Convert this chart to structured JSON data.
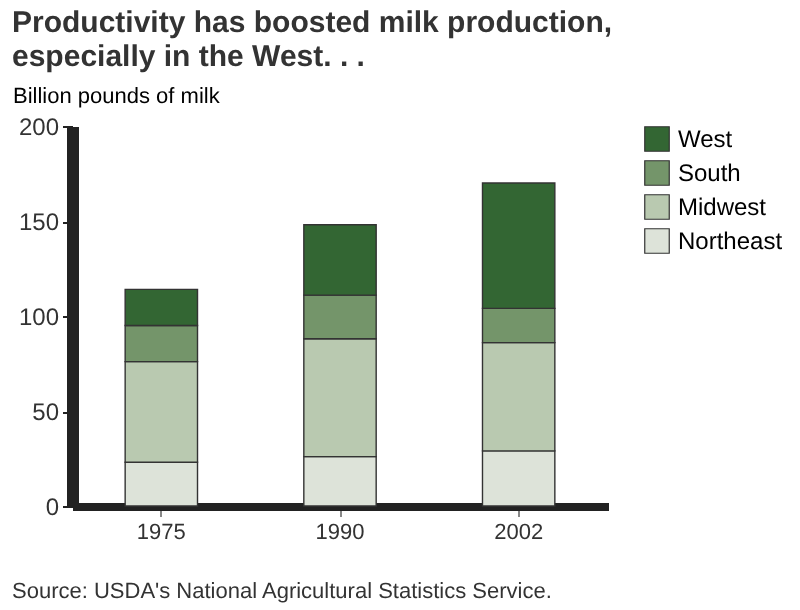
{
  "chart_data": {
    "type": "bar",
    "title": "Productivity has boosted milk production, especially in the West. . .",
    "ylabel": "Billion pounds of milk",
    "categories": [
      "1975",
      "1990",
      "2002"
    ],
    "stacked": true,
    "series": [
      {
        "name": "Northeast",
        "color": "#dde3d9",
        "values": [
          23,
          26,
          29
        ]
      },
      {
        "name": "Midwest",
        "color": "#b9c9b0",
        "values": [
          53,
          62,
          57
        ]
      },
      {
        "name": "South",
        "color": "#74956a",
        "values": [
          19,
          23,
          18
        ]
      },
      {
        "name": "West",
        "color": "#336633",
        "values": [
          19,
          37,
          66
        ]
      }
    ],
    "ylim": [
      0,
      200
    ],
    "yticks": [
      0,
      50,
      100,
      150,
      200
    ],
    "grid": false,
    "legend": "right",
    "annotations": [
      "Source: USDA's National Agricultural Statistics Service."
    ]
  }
}
